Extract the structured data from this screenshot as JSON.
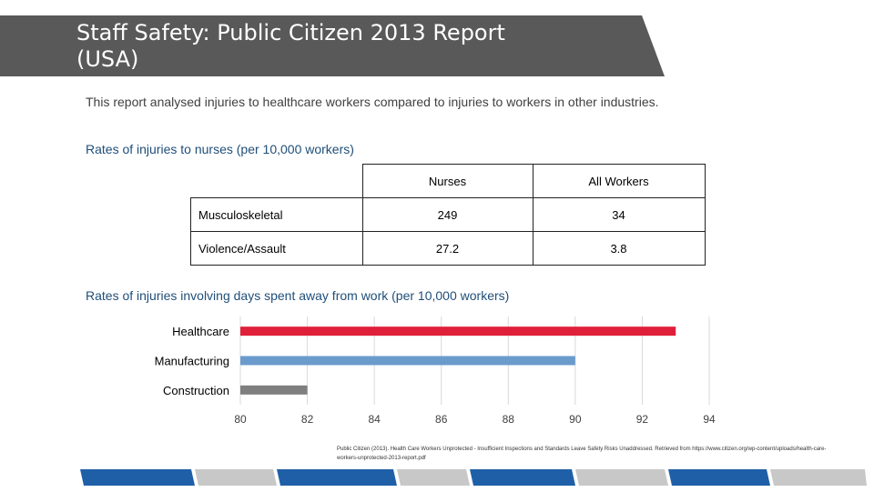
{
  "title": {
    "line1": "Staff Safety: Public Citizen 2013 Report",
    "line2": "(USA)"
  },
  "intro": "This report analysed injuries to healthcare workers compared to injuries to workers in other industries.",
  "table_section": {
    "heading": "Rates of injuries to nurses (per 10,000 workers)",
    "columns": [
      "Nurses",
      "All Workers"
    ],
    "rows": [
      {
        "label": "Musculoskeletal",
        "nurses": "249",
        "all_workers": "34"
      },
      {
        "label": "Violence/Assault",
        "nurses": "27.2",
        "all_workers": "3.8"
      }
    ]
  },
  "chart_section": {
    "heading": "Rates of injuries involving days spent away from work (per 10,000 workers)"
  },
  "citation": "Public Citizen (2013). Health Care Workers Unprotected - Insufficient Inspections and Standards Leave Safety Risks Unaddressed. Retrieved from https://www.citizen.org/wp-content/uploads/health-care-workers-unprotected-2013-report.pdf",
  "colors": {
    "title_band": "#595959",
    "healthcare": "#e0203a",
    "manufacturing": "#6b9bcc",
    "construction": "#7f7f7f",
    "footer_dark": "#1f5fa8",
    "footer_light": "#c8c8c8"
  },
  "chart_data": {
    "type": "bar",
    "orientation": "horizontal",
    "title": "Rates of injuries involving days spent away from work (per 10,000 workers)",
    "categories": [
      "Healthcare",
      "Manufacturing",
      "Construction"
    ],
    "values": [
      93,
      90,
      82
    ],
    "xlim": [
      80,
      94
    ],
    "xticks": [
      80,
      82,
      84,
      86,
      88,
      90,
      92,
      94
    ],
    "grid": "vertical",
    "legend": "none"
  }
}
